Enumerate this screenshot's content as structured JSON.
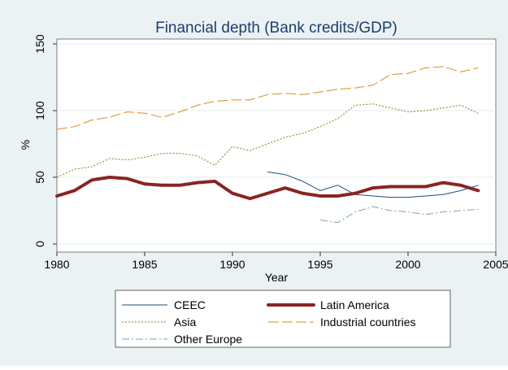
{
  "chart_data": {
    "type": "line",
    "title": "Financial depth (Bank credits/GDP)",
    "xlabel": "Year",
    "ylabel": "%",
    "xlim": [
      1980,
      2005
    ],
    "ylim": [
      0,
      150
    ],
    "x_ticks": [
      1980,
      1985,
      1990,
      1995,
      2000,
      2005
    ],
    "y_ticks": [
      0,
      50,
      100,
      150
    ],
    "grid": "horizontal",
    "legend_position": "bottom",
    "colors": {
      "background": "#eaf2f3",
      "plot_background": "#ffffff",
      "title": "#1f3d6e",
      "gridline": "#e4ecee"
    },
    "series": [
      {
        "name": "CEEC",
        "color": "#1b4e7a",
        "style": "solid",
        "x": [
          1992,
          1993,
          1994,
          1995,
          1996,
          1997,
          1998,
          1999,
          2000,
          2001,
          2002,
          2003,
          2004
        ],
        "values": [
          54,
          52,
          47,
          40,
          44,
          37,
          36,
          35,
          35,
          36,
          37,
          40,
          44
        ]
      },
      {
        "name": "Latin America",
        "color": "#8b2323",
        "style": "thick-dotted",
        "x": [
          1980,
          1981,
          1982,
          1983,
          1984,
          1985,
          1986,
          1987,
          1988,
          1989,
          1990,
          1991,
          1992,
          1993,
          1994,
          1995,
          1996,
          1997,
          1998,
          1999,
          2000,
          2001,
          2002,
          2003,
          2004
        ],
        "values": [
          36,
          40,
          48,
          50,
          49,
          45,
          44,
          44,
          46,
          47,
          38,
          34,
          38,
          42,
          38,
          36,
          36,
          38,
          42,
          43,
          43,
          43,
          46,
          44,
          40
        ]
      },
      {
        "name": "Asia",
        "color": "#6b8e23",
        "style": "dotted",
        "x": [
          1980,
          1981,
          1982,
          1983,
          1984,
          1985,
          1986,
          1987,
          1988,
          1989,
          1990,
          1991,
          1992,
          1993,
          1994,
          1995,
          1996,
          1997,
          1998,
          1999,
          2000,
          2001,
          2002,
          2003,
          2004
        ],
        "values": [
          50,
          56,
          58,
          64,
          63,
          65,
          68,
          68,
          66,
          59,
          73,
          70,
          75,
          80,
          83,
          88,
          94,
          104,
          105,
          102,
          99,
          100,
          102,
          104,
          98
        ]
      },
      {
        "name": "Industrial countries",
        "color": "#e08a1e",
        "style": "long-dash",
        "x": [
          1980,
          1981,
          1982,
          1983,
          1984,
          1985,
          1986,
          1987,
          1988,
          1989,
          1990,
          1991,
          1992,
          1993,
          1994,
          1995,
          1996,
          1997,
          1998,
          1999,
          2000,
          2001,
          2002,
          2003,
          2004
        ],
        "values": [
          86,
          88,
          93,
          95,
          99,
          98,
          95,
          99,
          104,
          107,
          108,
          108,
          112,
          113,
          112,
          114,
          116,
          117,
          119,
          127,
          128,
          132,
          133,
          129,
          132
        ]
      },
      {
        "name": "Other Europe",
        "color": "#7ea6a8",
        "style": "dash-dot",
        "x": [
          1995,
          1996,
          1997,
          1998,
          1999,
          2000,
          2001,
          2002,
          2003,
          2004
        ],
        "values": [
          18,
          16,
          24,
          28,
          25,
          24,
          22,
          24,
          25,
          26
        ]
      }
    ]
  }
}
